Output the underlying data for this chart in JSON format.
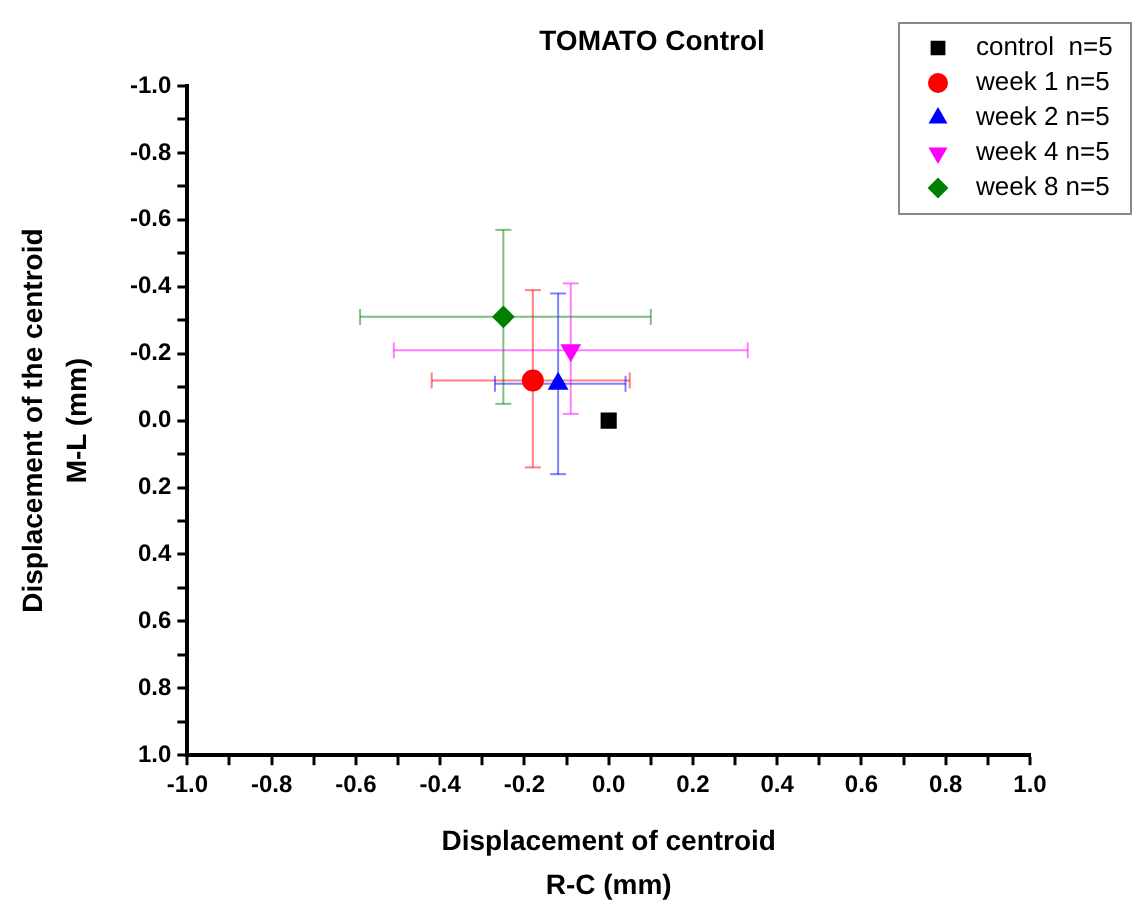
{
  "chart_data": {
    "type": "scatter",
    "title": "TOMATO Control",
    "xlabel": "Displacement of centroid\nR-C (mm)",
    "ylabel": "Displacement of the centroid\nM-L (mm)",
    "xlim": [
      -1.0,
      1.0
    ],
    "ylim": [
      1.0,
      -1.0
    ],
    "xticks": [
      {
        "value": -1.0,
        "label": "-1.0"
      },
      {
        "value": -0.9,
        "label": null
      },
      -0.8,
      {
        "value": -0.7,
        "label": null
      },
      -0.6,
      {
        "value": -0.5,
        "label": null
      },
      -0.4,
      {
        "value": -0.3,
        "label": null
      },
      -0.2,
      {
        "value": -0.1,
        "label": null
      },
      {
        "value": 0.0,
        "label": "0.0"
      },
      {
        "value": 0.1,
        "label": null
      },
      0.2,
      {
        "value": 0.3,
        "label": null
      },
      0.4,
      {
        "value": 0.5,
        "label": null
      },
      0.6,
      {
        "value": 0.7,
        "label": null
      },
      0.8,
      {
        "value": 0.9,
        "label": null
      },
      {
        "value": 1.0,
        "label": "1.0"
      }
    ],
    "yticks": [
      {
        "value": -1.0,
        "label": "-1.0"
      },
      {
        "value": -0.9,
        "label": null
      },
      -0.8,
      {
        "value": -0.7,
        "label": null
      },
      -0.6,
      {
        "value": -0.5,
        "label": null
      },
      -0.4,
      {
        "value": -0.3,
        "label": null
      },
      -0.2,
      {
        "value": -0.1,
        "label": null
      },
      {
        "value": 0.0,
        "label": "0.0"
      },
      {
        "value": 0.1,
        "label": null
      },
      0.2,
      {
        "value": 0.3,
        "label": null
      },
      0.4,
      {
        "value": 0.5,
        "label": null
      },
      0.6,
      {
        "value": 0.7,
        "label": null
      },
      0.8,
      {
        "value": 0.9,
        "label": null
      },
      {
        "value": 1.0,
        "label": "1.0"
      }
    ],
    "grid": false,
    "legend": "top right",
    "series": [
      {
        "name": "control  n=5",
        "color": "#000000",
        "marker": "square",
        "x": [
          0.0
        ],
        "values": [
          0.0
        ]
      },
      {
        "name": "week 1 n=5",
        "color": "#ff0000",
        "marker": "circle",
        "x": [
          -0.18
        ],
        "values": [
          -0.12
        ],
        "errors": [
          [
            -0.39,
            0.14
          ]
        ],
        "xerrors": [
          [
            -0.42,
            0.05
          ]
        ]
      },
      {
        "name": "week 2 n=5",
        "color": "#0000ff",
        "marker": "triangle",
        "x": [
          -0.12
        ],
        "values": [
          -0.11
        ],
        "errors": [
          [
            -0.38,
            0.16
          ]
        ],
        "xerrors": [
          [
            -0.27,
            0.04
          ]
        ]
      },
      {
        "name": "week 4 n=5",
        "color": "#ff00ff",
        "marker": "triangle_down",
        "x": [
          -0.09
        ],
        "values": [
          -0.21
        ],
        "errors": [
          [
            -0.41,
            -0.02
          ]
        ],
        "xerrors": [
          [
            -0.51,
            0.33
          ]
        ]
      },
      {
        "name": "week 8 n=5",
        "color": "#008000",
        "marker": "diamond",
        "x": [
          -0.25
        ],
        "values": [
          -0.31
        ],
        "errors": [
          [
            -0.57,
            -0.05
          ]
        ],
        "xerrors": [
          [
            -0.59,
            0.1
          ]
        ]
      }
    ]
  }
}
